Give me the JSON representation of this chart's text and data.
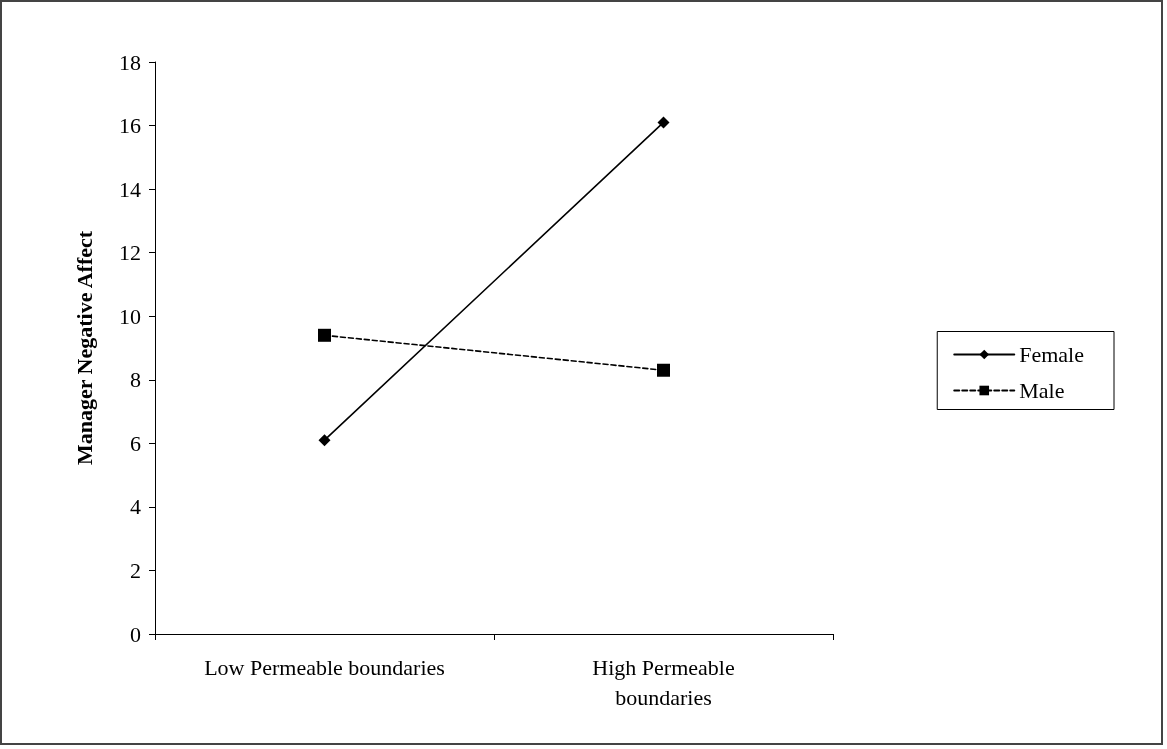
{
  "chart_data": {
    "type": "line",
    "ylabel": "Manager Negative Affect",
    "categories": [
      "Low Permeable boundaries",
      "High Permeable\nboundaries"
    ],
    "series": [
      {
        "name": "Female",
        "color": "#000000",
        "values": [
          6.1,
          16.1
        ],
        "marker": "diamond",
        "line_style": "solid"
      },
      {
        "name": "Male",
        "color": "#000000",
        "values": [
          9.4,
          8.3
        ],
        "marker": "square",
        "line_style": "dashed"
      }
    ],
    "ylim": [
      0,
      18
    ],
    "yticks": [
      0,
      2,
      4,
      6,
      8,
      10,
      12,
      14,
      16,
      18
    ],
    "grid": false,
    "legend": "right"
  }
}
